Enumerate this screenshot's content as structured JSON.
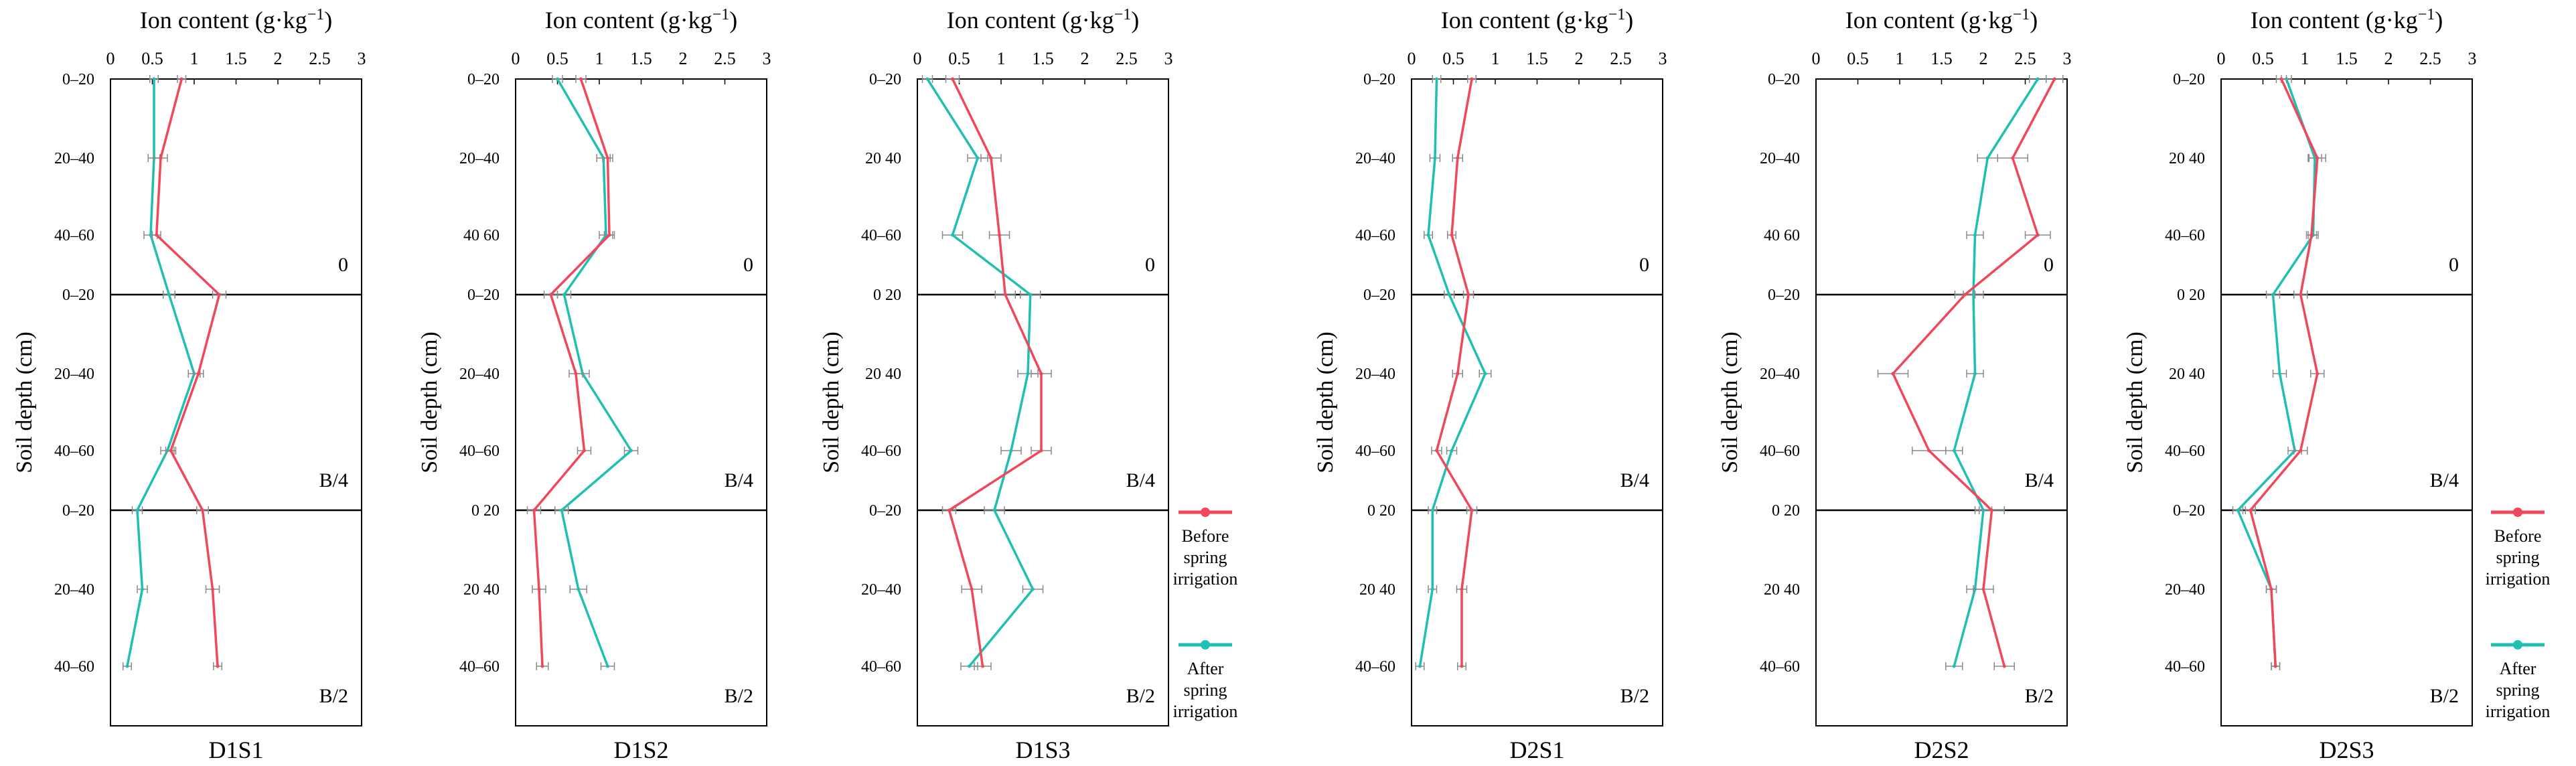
{
  "chart_data": {
    "type": "line",
    "xlabel_top": "Ion content (g·kg",
    "xlabel_sup": "−1",
    "xlabel_close": ")",
    "ylabel": "Soil depth (cm)",
    "x_ticks": [
      "0",
      "0.5",
      "1",
      "1.5",
      "2",
      "2.5",
      "3"
    ],
    "xlim": [
      0,
      3
    ],
    "band_labels": [
      "0",
      "B/4",
      "B/2"
    ],
    "legend": [
      {
        "name_lines": [
          "Before",
          "spring",
          "irrigation"
        ],
        "color": "#f0475a"
      },
      {
        "name_lines": [
          "After",
          "spring",
          "irrigation"
        ],
        "color": "#1fbfb2"
      }
    ],
    "colors": {
      "before": "#f0475a",
      "after": "#1fbfb2",
      "axis": "#000000",
      "errorbar": "#8a8a8a"
    },
    "panels": [
      {
        "title": "D1S1",
        "y_tick_labels": [
          "0–20",
          "20–40",
          "40–60",
          "0–20",
          "20–40",
          "40–60",
          "0–20",
          "20–40",
          "40–60"
        ],
        "before": [
          0.85,
          0.6,
          0.55,
          1.3,
          1.05,
          0.72,
          1.1,
          1.22,
          1.28
        ],
        "after": [
          0.52,
          0.52,
          0.48,
          0.7,
          1.0,
          0.68,
          0.32,
          0.38,
          0.2
        ],
        "before_err": [
          0.05,
          0.08,
          0.05,
          0.08,
          0.06,
          0.06,
          0.07,
          0.08,
          0.05
        ],
        "after_err": [
          0.05,
          0.07,
          0.08,
          0.07,
          0.07,
          0.08,
          0.06,
          0.06,
          0.05
        ]
      },
      {
        "title": "D1S2",
        "y_tick_labels": [
          "0–20",
          "20–40",
          "40 60",
          "0–20",
          "20–40",
          "40–60",
          "0 20",
          "20 40",
          "40–60"
        ],
        "before": [
          0.78,
          1.1,
          1.12,
          0.42,
          0.72,
          0.82,
          0.22,
          0.28,
          0.32
        ],
        "after": [
          0.5,
          1.05,
          1.08,
          0.58,
          0.8,
          1.38,
          0.55,
          0.75,
          1.1
        ],
        "before_err": [
          0.06,
          0.06,
          0.06,
          0.08,
          0.08,
          0.08,
          0.08,
          0.08,
          0.07
        ],
        "after_err": [
          0.06,
          0.08,
          0.08,
          0.08,
          0.08,
          0.08,
          0.08,
          0.1,
          0.08
        ]
      },
      {
        "title": "D1S3",
        "y_tick_labels": [
          "0–20",
          "20 40",
          "40–60",
          "0 20",
          "20 40",
          "40–60",
          "0–20",
          "20–40",
          "40–60"
        ],
        "before": [
          0.42,
          0.88,
          0.98,
          1.05,
          1.48,
          1.48,
          0.38,
          0.65,
          0.78
        ],
        "after": [
          0.12,
          0.72,
          0.42,
          1.35,
          1.32,
          1.12,
          0.92,
          1.38,
          0.62
        ],
        "before_err": [
          0.08,
          0.12,
          0.12,
          0.12,
          0.12,
          0.12,
          0.08,
          0.12,
          0.1
        ],
        "after_err": [
          0.06,
          0.12,
          0.12,
          0.12,
          0.12,
          0.12,
          0.12,
          0.12,
          0.1
        ]
      },
      {
        "title": "D2S1",
        "y_tick_labels": [
          "0–20",
          "20–40",
          "40–60",
          "0–20",
          "20–40",
          "40–60",
          "0 20",
          "20 40",
          "40–60"
        ],
        "before": [
          0.72,
          0.55,
          0.48,
          0.68,
          0.55,
          0.3,
          0.72,
          0.6,
          0.6
        ],
        "after": [
          0.3,
          0.28,
          0.2,
          0.45,
          0.88,
          0.48,
          0.25,
          0.25,
          0.1
        ],
        "before_err": [
          0.05,
          0.06,
          0.05,
          0.06,
          0.06,
          0.06,
          0.06,
          0.06,
          0.05
        ],
        "after_err": [
          0.05,
          0.06,
          0.05,
          0.06,
          0.07,
          0.06,
          0.05,
          0.05,
          0.05
        ]
      },
      {
        "title": "D2S2",
        "y_tick_labels": [
          "0–20",
          "20–40",
          "40 60",
          "0–20",
          "20–40",
          "40–60",
          "0 20",
          "20 40",
          "40–60"
        ],
        "before": [
          2.85,
          2.35,
          2.65,
          1.78,
          0.92,
          1.35,
          2.1,
          2.0,
          2.25
        ],
        "after": [
          2.65,
          2.05,
          1.9,
          1.88,
          1.9,
          1.65,
          2.0,
          1.9,
          1.65
        ],
        "before_err": [
          0.1,
          0.18,
          0.15,
          0.12,
          0.18,
          0.2,
          0.15,
          0.12,
          0.12
        ],
        "after_err": [
          0.1,
          0.12,
          0.1,
          0.12,
          0.1,
          0.1,
          0.1,
          0.1,
          0.1
        ]
      },
      {
        "title": "D2S3",
        "y_tick_labels": [
          "0–20",
          "20 40",
          "40–60",
          "0 20",
          "20 40",
          "40–60",
          "0–20",
          "20–40",
          "40–60"
        ],
        "before": [
          0.72,
          1.15,
          1.08,
          0.95,
          1.15,
          0.95,
          0.35,
          0.6,
          0.65
        ],
        "after": [
          0.78,
          1.12,
          1.1,
          0.62,
          0.7,
          0.88,
          0.2,
          0.6,
          0.65
        ],
        "before_err": [
          0.06,
          0.1,
          0.06,
          0.08,
          0.08,
          0.08,
          0.06,
          0.06,
          0.05
        ],
        "after_err": [
          0.06,
          0.08,
          0.06,
          0.08,
          0.08,
          0.08,
          0.06,
          0.06,
          0.05
        ]
      }
    ]
  }
}
